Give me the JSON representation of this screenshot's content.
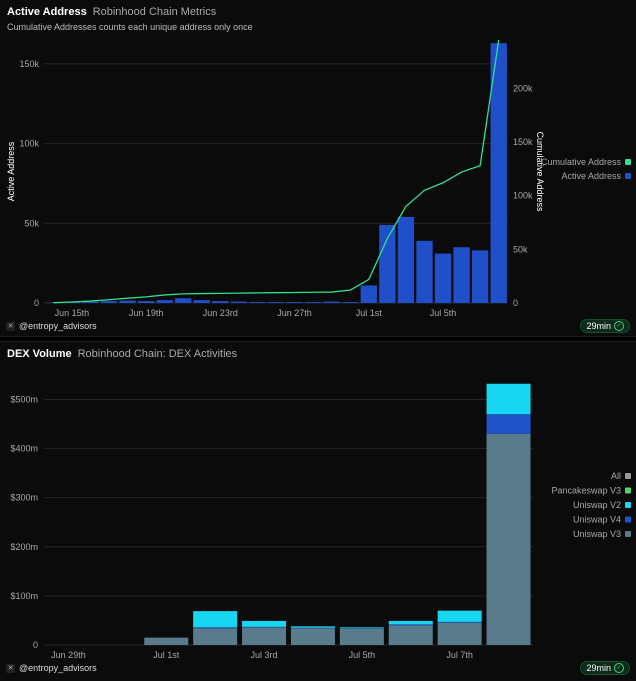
{
  "footer": {
    "handle": "@entropy_advisors",
    "age": "29min"
  },
  "colors": {
    "bg": "#0b0b0b",
    "grid": "#262626",
    "axis_text": "#a8a8a8",
    "bar_blue": "#1f4fc9",
    "line_green": "#2ee08f",
    "uni_v3": "#5a7b8c",
    "uni_v4": "#1f55c9",
    "uni_v2": "#17d6f0",
    "pancake": "#4cd964",
    "all": "#999999"
  },
  "chart_data": [
    {
      "type": "bar",
      "title": "Active Address",
      "subtitle": "Robinhood Chain Metrics",
      "description": "Cumulative Addresses counts each unique address only once",
      "ylabel": "Active Address",
      "y2label": "Cumulative Address",
      "ylim": [
        0,
        165000
      ],
      "y2lim": [
        0,
        245000
      ],
      "y_ticks": [
        0,
        50000,
        100000,
        150000
      ],
      "y_tick_labels": [
        "0",
        "50k",
        "100k",
        "150k"
      ],
      "y2_ticks": [
        0,
        50000,
        100000,
        150000,
        200000
      ],
      "y2_tick_labels": [
        "0",
        "50k",
        "100k",
        "150k",
        "200k"
      ],
      "x_tick_labels": [
        "Jun 15th",
        "Jun 19th",
        "Jun 23rd",
        "Jun 27th",
        "Jul 1st",
        "Jul 5th"
      ],
      "x_tick_index": [
        1,
        5,
        9,
        13,
        17,
        21
      ],
      "categories": [
        "Jun 14",
        "Jun 15",
        "Jun 16",
        "Jun 17",
        "Jun 18",
        "Jun 19",
        "Jun 20",
        "Jun 21",
        "Jun 22",
        "Jun 23",
        "Jun 24",
        "Jun 25",
        "Jun 26",
        "Jun 27",
        "Jun 28",
        "Jun 29",
        "Jun 30",
        "Jul 1",
        "Jul 2",
        "Jul 3",
        "Jul 4",
        "Jul 5",
        "Jul 6",
        "Jul 7",
        "Jul 8"
      ],
      "legend": [
        "Cumulative Address",
        "Active Address"
      ],
      "legend_placement": "right",
      "series": [
        {
          "name": "Active Address",
          "type": "bar",
          "axis": "left",
          "values": [
            300,
            600,
            900,
            1200,
            1500,
            1200,
            1800,
            3000,
            1800,
            1200,
            900,
            600,
            600,
            600,
            600,
            900,
            600,
            11000,
            49000,
            54000,
            39000,
            31000,
            35000,
            33000,
            163000
          ]
        },
        {
          "name": "Cumulative Address",
          "type": "line",
          "axis": "right",
          "values": [
            300,
            900,
            1800,
            3000,
            4500,
            5700,
            7500,
            8500,
            8800,
            9000,
            9200,
            9400,
            9600,
            9800,
            10000,
            10200,
            12000,
            22000,
            60000,
            90000,
            105000,
            112000,
            122000,
            128000,
            245000
          ]
        }
      ]
    },
    {
      "type": "bar",
      "stacked": true,
      "title": "DEX Volume",
      "subtitle": "Robinhood Chain: DEX Activities",
      "ylim": [
        0,
        560000000
      ],
      "y_ticks": [
        0,
        100000000,
        200000000,
        300000000,
        400000000,
        500000000
      ],
      "y_tick_labels": [
        "0",
        "$100m",
        "$200m",
        "$300m",
        "$400m",
        "$500m"
      ],
      "x_tick_labels": [
        "Jun 29th",
        "Jul 1st",
        "Jul 3rd",
        "Jul 5th",
        "Jul 7th"
      ],
      "x_tick_index": [
        0,
        2,
        4,
        6,
        8
      ],
      "categories": [
        "Jun 29",
        "Jun 30",
        "Jul 1",
        "Jul 2",
        "Jul 3",
        "Jul 4",
        "Jul 5",
        "Jul 6",
        "Jul 7",
        "Jul 8"
      ],
      "legend": [
        "All",
        "Pancakeswap V3",
        "Uniswap V2",
        "Uniswap V4",
        "Uniswap V3"
      ],
      "legend_placement": "right",
      "series": [
        {
          "name": "Uniswap V3",
          "values": [
            0,
            0,
            15000000,
            34000000,
            36000000,
            34000000,
            33000000,
            40000000,
            45000000,
            430000000
          ]
        },
        {
          "name": "Uniswap V4",
          "values": [
            0,
            0,
            0,
            2000000,
            1000000,
            1000000,
            1000000,
            2000000,
            2000000,
            40000000
          ]
        },
        {
          "name": "Uniswap V2",
          "values": [
            0,
            0,
            0,
            33000000,
            12000000,
            3000000,
            2000000,
            7000000,
            23000000,
            62000000
          ]
        },
        {
          "name": "Pancakeswap V3",
          "values": [
            0,
            0,
            0,
            0,
            0,
            0,
            0,
            0,
            0,
            0
          ]
        }
      ]
    }
  ]
}
